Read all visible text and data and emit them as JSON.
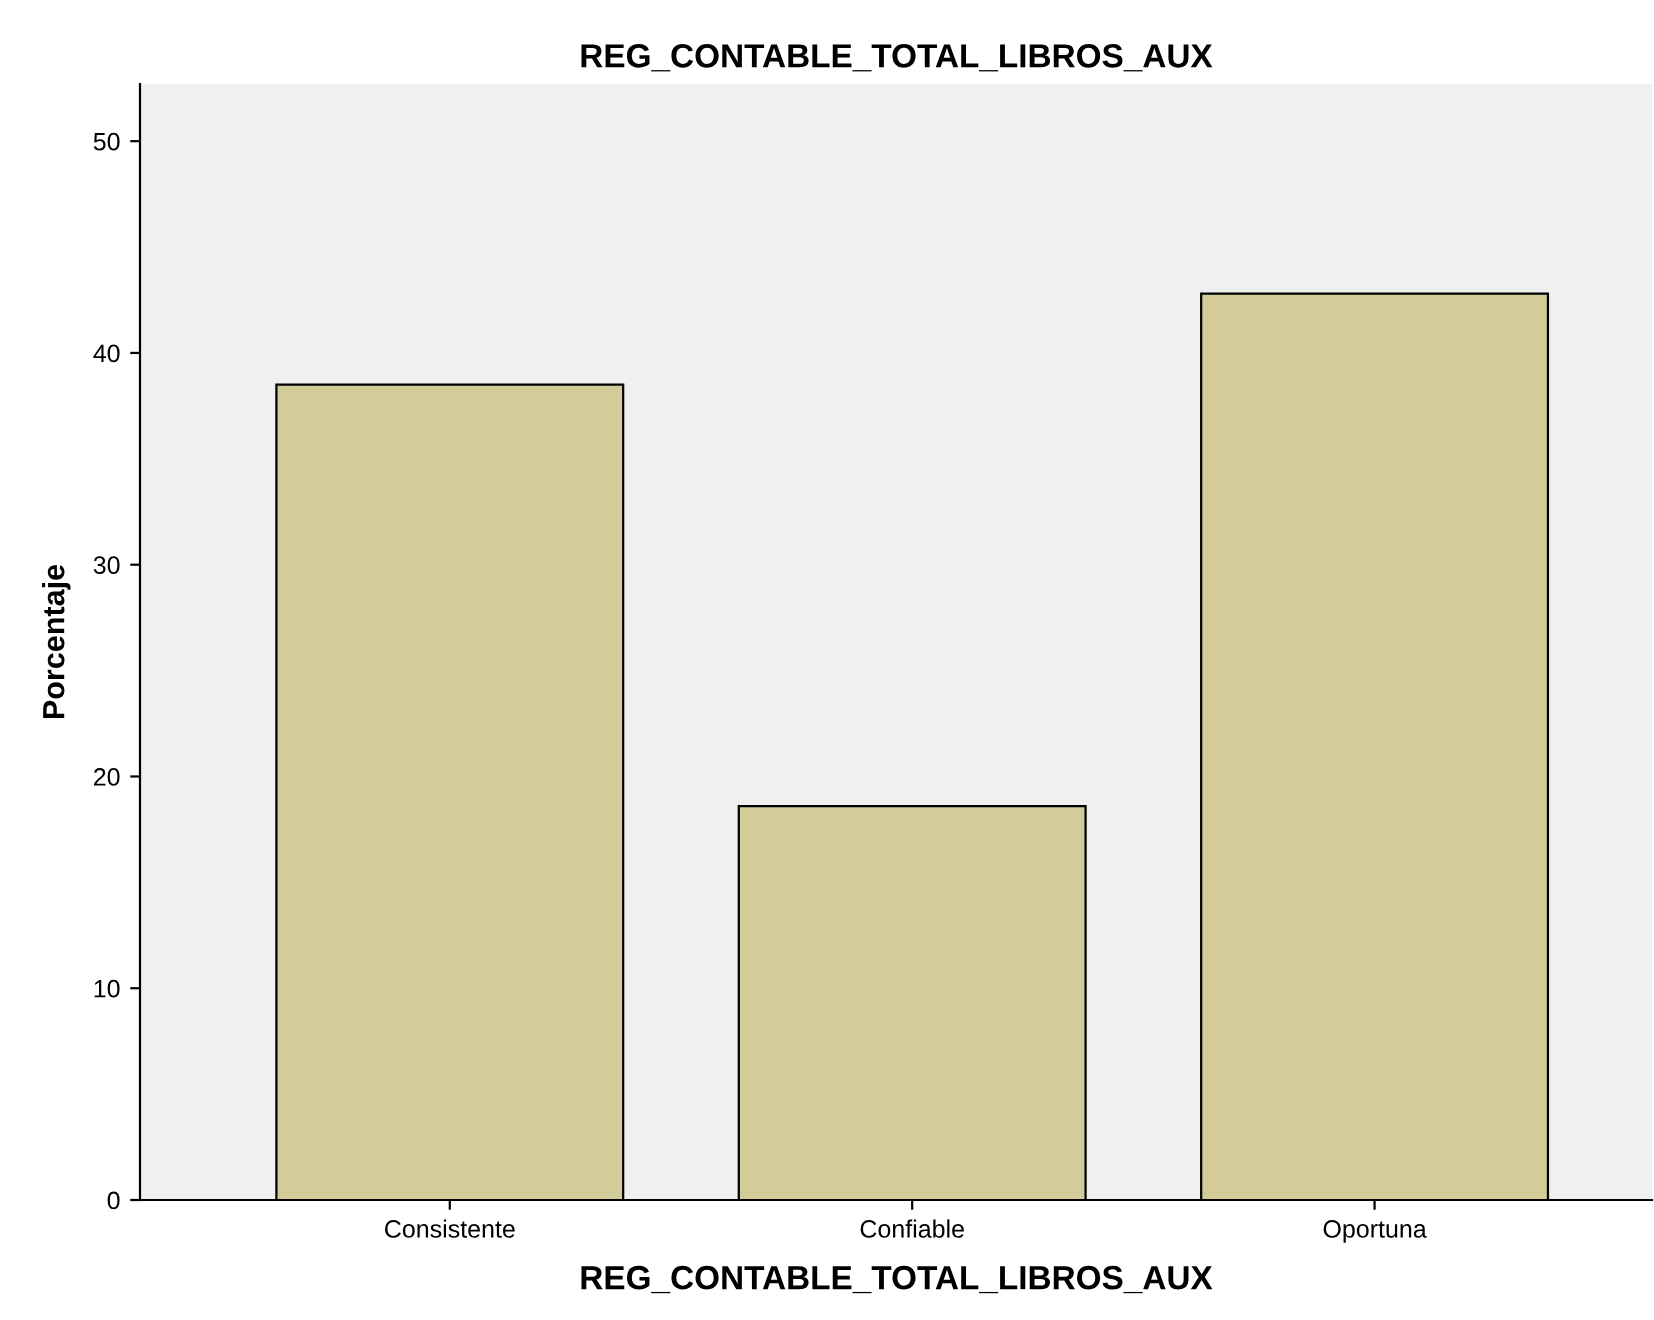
{
  "chart_data": {
    "type": "bar",
    "title": "REG_CONTABLE_TOTAL_LIBROS_AUX",
    "xlabel": "REG_CONTABLE_TOTAL_LIBROS_AUX",
    "ylabel": "Porcentaje",
    "categories": [
      "Consistente",
      "Confiable",
      "Oportuna"
    ],
    "values": [
      38.5,
      18.6,
      42.8
    ],
    "color": "#d3cc98",
    "ylim": [
      0,
      52.7
    ],
    "yticks": [
      0,
      10,
      20,
      30,
      40,
      50
    ],
    "grid": false
  }
}
